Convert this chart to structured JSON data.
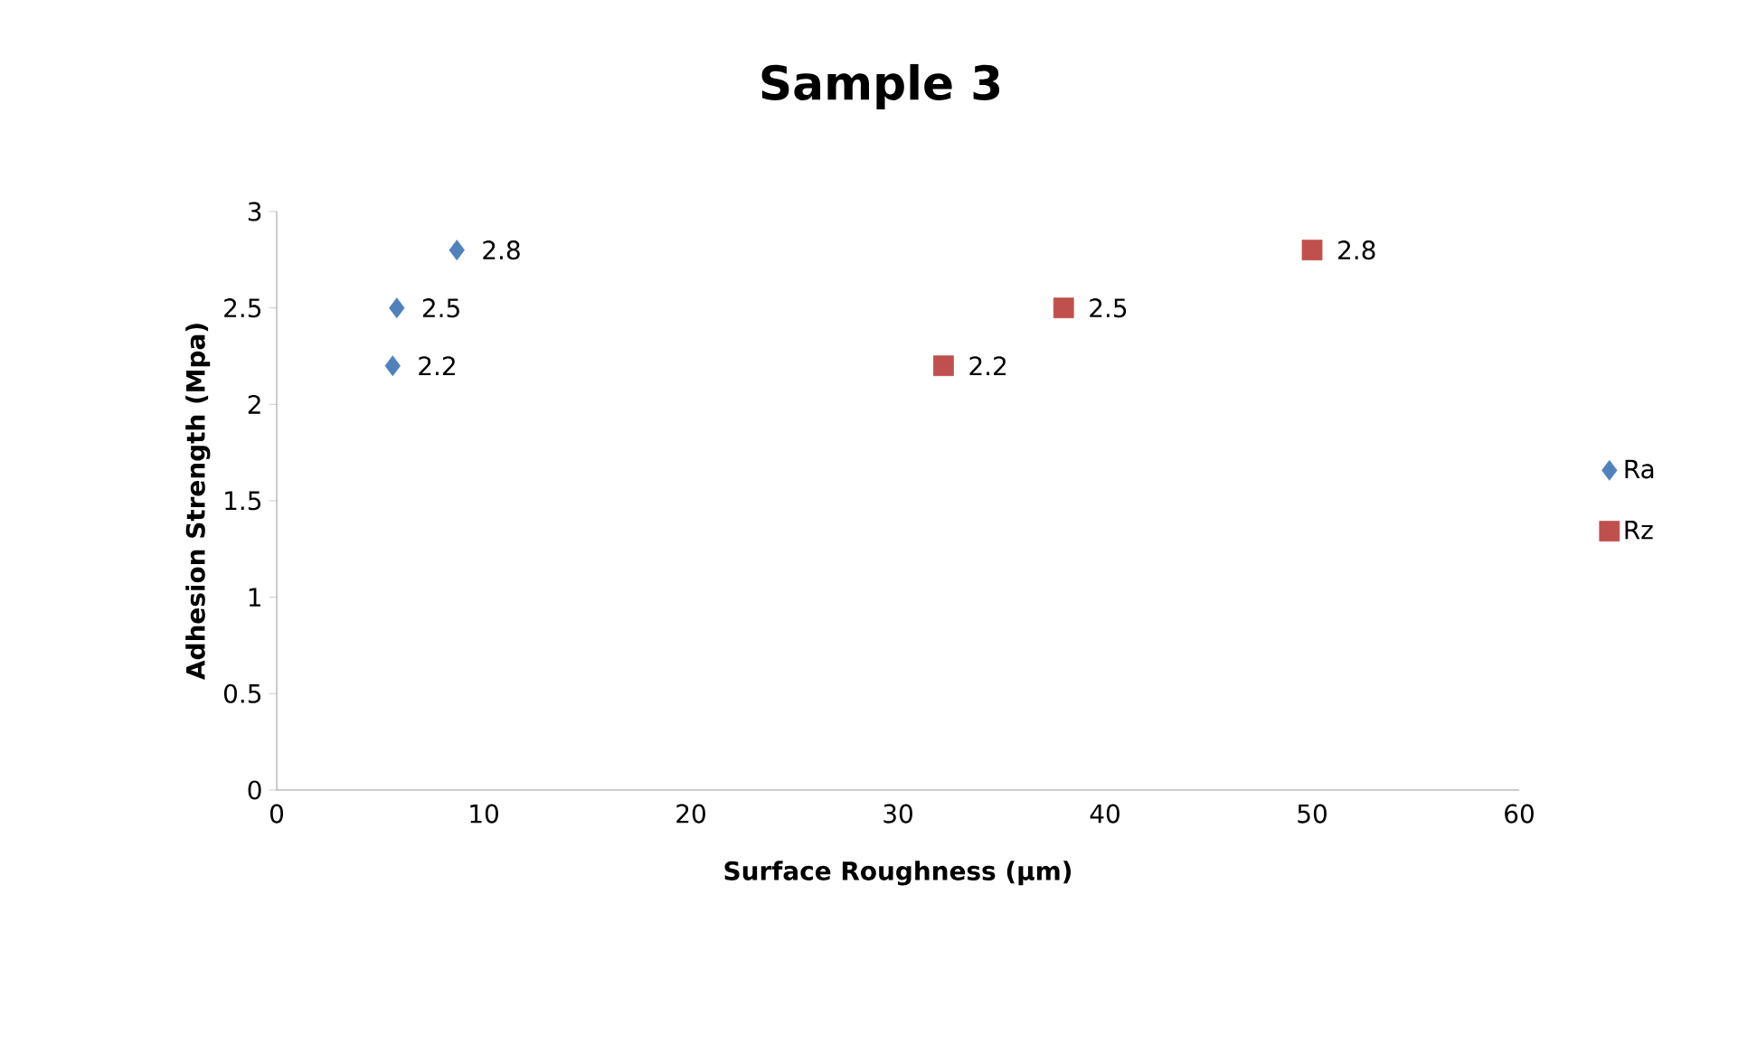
{
  "chart_data": {
    "type": "scatter",
    "title": "Sample 3",
    "xlabel": "Surface Roughness (µm)",
    "ylabel": "Adhesion Strength (Mpa)",
    "xlim": [
      0,
      60
    ],
    "xticks": [
      0,
      10,
      20,
      30,
      40,
      50,
      60
    ],
    "ylim": [
      0,
      3
    ],
    "yticks": [
      0,
      0.5,
      1,
      1.5,
      2,
      2.5,
      3
    ],
    "grid": false,
    "legend": "right",
    "data_labels": true,
    "series": [
      {
        "name": "Ra",
        "color": "#4f81bd",
        "marker": "diamond",
        "x": [
          8.7,
          5.8,
          5.6
        ],
        "values": [
          2.8,
          2.5,
          2.2
        ]
      },
      {
        "name": "Rz",
        "color": "#c0504d",
        "marker": "square",
        "x": [
          50,
          38,
          32.2
        ],
        "values": [
          2.8,
          2.5,
          2.2
        ]
      }
    ]
  }
}
